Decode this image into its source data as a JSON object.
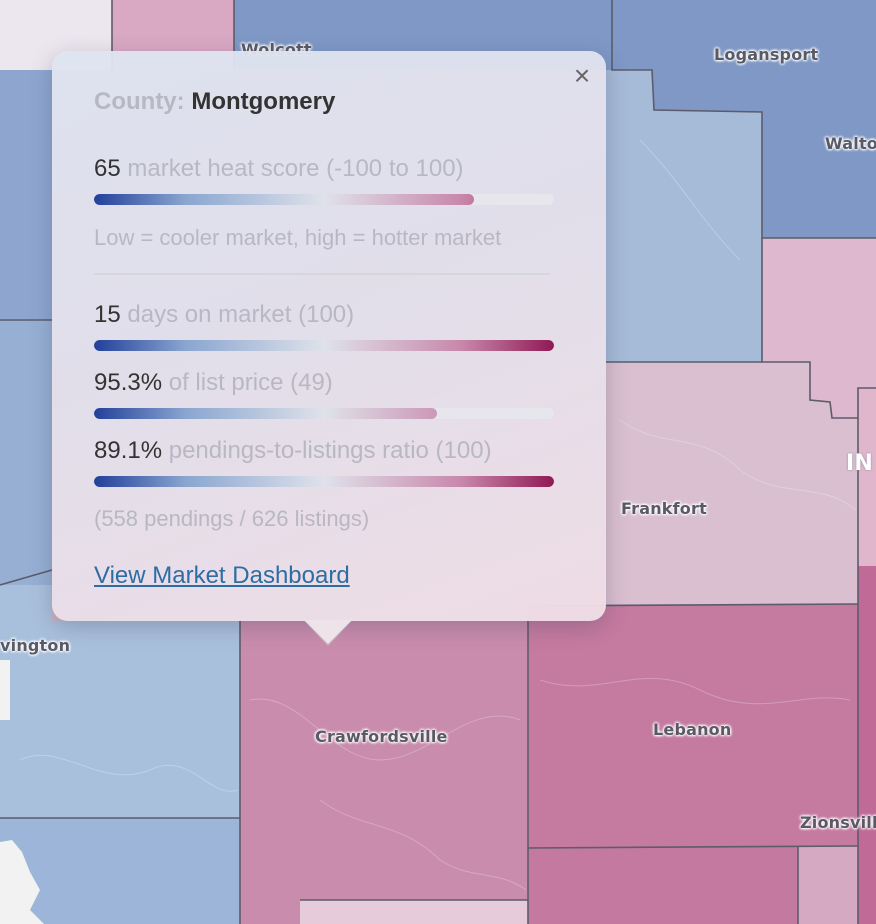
{
  "map": {
    "cities": [
      {
        "id": "wolcott",
        "label": "Wolcott"
      },
      {
        "id": "logansport",
        "label": "Logansport"
      },
      {
        "id": "walton",
        "label": "Walto"
      },
      {
        "id": "frankfort",
        "label": "Frankfort"
      },
      {
        "id": "in",
        "label": "IN"
      },
      {
        "id": "covington",
        "label": "vington"
      },
      {
        "id": "crawfordsville",
        "label": "Crawfordsville"
      },
      {
        "id": "lebanon",
        "label": "Lebanon"
      },
      {
        "id": "zionsville",
        "label": "Zionsvill"
      }
    ],
    "colors": {
      "cool": "#23409a",
      "neutral": "#dfe2ea",
      "hot": "#8f1a54"
    }
  },
  "popup": {
    "close_label": "×",
    "county_label": "County:",
    "county_name": "Montgomery",
    "heat": {
      "value": "65",
      "label": "market heat score (-100 to 100)",
      "fraction": 0.825
    },
    "heat_note": "Low = cooler market, high = hotter market",
    "days": {
      "value": "15",
      "label": "days on market (100)",
      "fraction": 1.0
    },
    "list_price": {
      "value": "95.3%",
      "label": "of list price (49)",
      "fraction": 0.745
    },
    "pendings": {
      "value": "89.1%",
      "label": "pendings-to-listings ratio (100)",
      "fraction": 1.0
    },
    "pendings_note": "(558 pendings / 626 listings)",
    "link_label": "View Market Dashboard"
  }
}
